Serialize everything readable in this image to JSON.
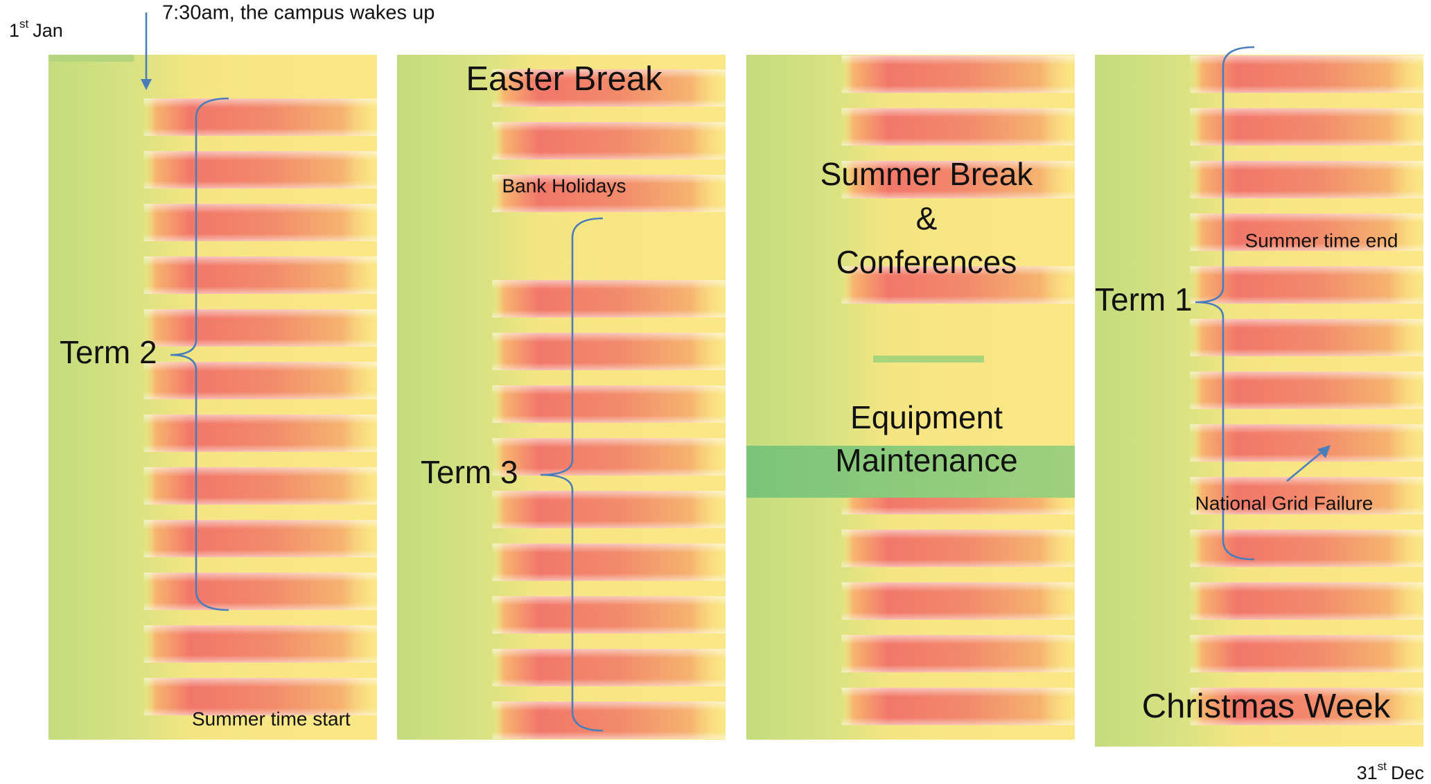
{
  "start_date": {
    "day": "1",
    "suffix": "st",
    "month": "Jan"
  },
  "end_date": {
    "day": "31",
    "suffix": "st",
    "month": "Dec"
  },
  "wake_note": "7:30am, the campus wakes up",
  "annotations": {
    "term_2": "Term 2",
    "summer_time_start": "Summer time start",
    "easter_break": "Easter Break",
    "bank_holidays": "Bank Holidays",
    "term_3": "Term 3",
    "summer_break": [
      "Summer Break",
      "&",
      "Conferences"
    ],
    "equipment_maintenance": [
      "Equipment",
      "Maintenance"
    ],
    "term_1": "Term 1",
    "summer_time_end": "Summer time end",
    "national_grid_failure": "National Grid Failure",
    "christmas_week": "Christmas Week"
  }
}
